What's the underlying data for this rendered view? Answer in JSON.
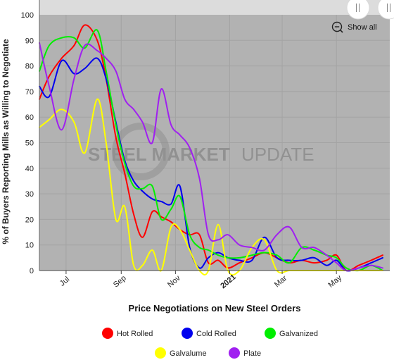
{
  "ui": {
    "show_all_label": "Show all",
    "watermark": {
      "part1": "STEEL MARKET",
      "part2": "UPDATE"
    }
  },
  "chart_data": {
    "type": "line",
    "title": "",
    "xlabel": "Price Negotiations on New Steel Orders",
    "ylabel": "% of Buyers Reporting Mills as Willing to Negotiate",
    "x_range": [
      "2020-06-01",
      "2021-06-30"
    ],
    "ylim": [
      0,
      100
    ],
    "yticks": [
      0,
      10,
      20,
      30,
      40,
      50,
      60,
      70,
      80,
      90,
      100
    ],
    "xticks": [
      {
        "date": "2020-07-01",
        "label": "Jul",
        "bold": false
      },
      {
        "date": "2020-09-01",
        "label": "Sep",
        "bold": false
      },
      {
        "date": "2020-11-01",
        "label": "Nov",
        "bold": false
      },
      {
        "date": "2021-01-01",
        "label": "2021",
        "bold": true
      },
      {
        "date": "2021-03-01",
        "label": "Mar",
        "bold": false
      },
      {
        "date": "2021-05-01",
        "label": "May",
        "bold": false
      }
    ],
    "background": "#b2b2b2",
    "grid": true,
    "legend_position": "bottom",
    "series": [
      {
        "name": "Hot Rolled",
        "color": "#ff0000",
        "points": [
          [
            "2020-06-01",
            67
          ],
          [
            "2020-06-12",
            76
          ],
          [
            "2020-06-26",
            83
          ],
          [
            "2020-07-10",
            88
          ],
          [
            "2020-07-22",
            96
          ],
          [
            "2020-08-05",
            90
          ],
          [
            "2020-08-15",
            75
          ],
          [
            "2020-08-26",
            52
          ],
          [
            "2020-09-05",
            38
          ],
          [
            "2020-09-15",
            22
          ],
          [
            "2020-09-25",
            13
          ],
          [
            "2020-10-06",
            23
          ],
          [
            "2020-10-16",
            21
          ],
          [
            "2020-10-27",
            19
          ],
          [
            "2020-11-06",
            16
          ],
          [
            "2020-11-17",
            14
          ],
          [
            "2020-11-28",
            14
          ],
          [
            "2020-12-08",
            3
          ],
          [
            "2020-12-19",
            4
          ],
          [
            "2020-12-30",
            1
          ],
          [
            "2021-01-12",
            3
          ],
          [
            "2021-01-26",
            5
          ],
          [
            "2021-02-09",
            7
          ],
          [
            "2021-02-23",
            5
          ],
          [
            "2021-03-09",
            3
          ],
          [
            "2021-03-23",
            4
          ],
          [
            "2021-04-06",
            3
          ],
          [
            "2021-04-20",
            4
          ],
          [
            "2021-05-01",
            6
          ],
          [
            "2021-05-12",
            0
          ],
          [
            "2021-05-26",
            2
          ],
          [
            "2021-06-09",
            4
          ],
          [
            "2021-06-22",
            6
          ]
        ]
      },
      {
        "name": "Cold Rolled",
        "color": "#0000ee",
        "points": [
          [
            "2020-06-01",
            72
          ],
          [
            "2020-06-12",
            68
          ],
          [
            "2020-06-26",
            82
          ],
          [
            "2020-07-10",
            77
          ],
          [
            "2020-07-22",
            79
          ],
          [
            "2020-08-05",
            83
          ],
          [
            "2020-08-15",
            75
          ],
          [
            "2020-08-26",
            58
          ],
          [
            "2020-09-05",
            43
          ],
          [
            "2020-09-15",
            35
          ],
          [
            "2020-09-25",
            31
          ],
          [
            "2020-10-06",
            28
          ],
          [
            "2020-10-16",
            27
          ],
          [
            "2020-10-27",
            26
          ],
          [
            "2020-11-06",
            33
          ],
          [
            "2020-11-17",
            9
          ],
          [
            "2020-11-28",
            1
          ],
          [
            "2020-12-08",
            5
          ],
          [
            "2020-12-19",
            7
          ],
          [
            "2020-12-30",
            5
          ],
          [
            "2021-01-12",
            4
          ],
          [
            "2021-01-26",
            4
          ],
          [
            "2021-02-09",
            13
          ],
          [
            "2021-02-23",
            5
          ],
          [
            "2021-03-09",
            4
          ],
          [
            "2021-03-23",
            4
          ],
          [
            "2021-04-06",
            5
          ],
          [
            "2021-04-20",
            2
          ],
          [
            "2021-05-01",
            4
          ],
          [
            "2021-05-12",
            0
          ],
          [
            "2021-05-26",
            1
          ],
          [
            "2021-06-09",
            3
          ],
          [
            "2021-06-22",
            5
          ]
        ]
      },
      {
        "name": "Galvanized",
        "color": "#00ee00",
        "points": [
          [
            "2020-06-01",
            78
          ],
          [
            "2020-06-12",
            88
          ],
          [
            "2020-06-26",
            91
          ],
          [
            "2020-07-10",
            91
          ],
          [
            "2020-07-22",
            87
          ],
          [
            "2020-08-05",
            94
          ],
          [
            "2020-08-15",
            78
          ],
          [
            "2020-08-26",
            57
          ],
          [
            "2020-09-05",
            42
          ],
          [
            "2020-09-15",
            33
          ],
          [
            "2020-09-25",
            32
          ],
          [
            "2020-10-06",
            33
          ],
          [
            "2020-10-16",
            20
          ],
          [
            "2020-10-27",
            24
          ],
          [
            "2020-11-06",
            29
          ],
          [
            "2020-11-17",
            14
          ],
          [
            "2020-11-28",
            9
          ],
          [
            "2020-12-08",
            8
          ],
          [
            "2020-12-19",
            6
          ],
          [
            "2020-12-30",
            5
          ],
          [
            "2021-01-12",
            5
          ],
          [
            "2021-01-26",
            6
          ],
          [
            "2021-02-09",
            7
          ],
          [
            "2021-02-23",
            6
          ],
          [
            "2021-03-09",
            3
          ],
          [
            "2021-03-23",
            9
          ],
          [
            "2021-04-06",
            8
          ],
          [
            "2021-04-20",
            6
          ],
          [
            "2021-05-01",
            5
          ],
          [
            "2021-05-12",
            1
          ],
          [
            "2021-05-26",
            0
          ],
          [
            "2021-06-09",
            2
          ],
          [
            "2021-06-22",
            0
          ]
        ]
      },
      {
        "name": "Galvalume",
        "color": "#ffff00",
        "points": [
          [
            "2020-06-01",
            56
          ],
          [
            "2020-06-12",
            59
          ],
          [
            "2020-06-26",
            63
          ],
          [
            "2020-07-10",
            58
          ],
          [
            "2020-07-22",
            46
          ],
          [
            "2020-08-05",
            67
          ],
          [
            "2020-08-15",
            50
          ],
          [
            "2020-08-26",
            20
          ],
          [
            "2020-09-05",
            25
          ],
          [
            "2020-09-15",
            2
          ],
          [
            "2020-09-25",
            2
          ],
          [
            "2020-10-06",
            8
          ],
          [
            "2020-10-16",
            0
          ],
          [
            "2020-10-27",
            17
          ],
          [
            "2020-11-06",
            16
          ],
          [
            "2020-11-17",
            8
          ],
          [
            "2020-11-28",
            0
          ],
          [
            "2020-12-08",
            0
          ],
          [
            "2020-12-19",
            18
          ],
          [
            "2020-12-30",
            0
          ],
          [
            "2021-01-12",
            0
          ],
          [
            "2021-01-26",
            9
          ],
          [
            "2021-02-09",
            12
          ],
          [
            "2021-02-23",
            0
          ],
          [
            "2021-03-09",
            0
          ],
          [
            "2021-03-23",
            0
          ],
          [
            "2021-04-06",
            0
          ],
          [
            "2021-04-20",
            0
          ],
          [
            "2021-05-01",
            0
          ],
          [
            "2021-05-12",
            0
          ],
          [
            "2021-05-26",
            0
          ],
          [
            "2021-06-09",
            0
          ],
          [
            "2021-06-22",
            0
          ]
        ]
      },
      {
        "name": "Plate",
        "color": "#a020f0",
        "points": [
          [
            "2020-06-01",
            89
          ],
          [
            "2020-06-12",
            72
          ],
          [
            "2020-06-26",
            55
          ],
          [
            "2020-07-10",
            75
          ],
          [
            "2020-07-22",
            88
          ],
          [
            "2020-08-05",
            86
          ],
          [
            "2020-08-15",
            83
          ],
          [
            "2020-08-26",
            78
          ],
          [
            "2020-09-05",
            67
          ],
          [
            "2020-09-15",
            63
          ],
          [
            "2020-09-25",
            58
          ],
          [
            "2020-10-06",
            50
          ],
          [
            "2020-10-16",
            71
          ],
          [
            "2020-10-27",
            57
          ],
          [
            "2020-11-06",
            53
          ],
          [
            "2020-11-17",
            48
          ],
          [
            "2020-11-28",
            36
          ],
          [
            "2020-12-08",
            14
          ],
          [
            "2020-12-19",
            12
          ],
          [
            "2020-12-30",
            14
          ],
          [
            "2021-01-12",
            10
          ],
          [
            "2021-01-26",
            9
          ],
          [
            "2021-02-09",
            8
          ],
          [
            "2021-02-23",
            14
          ],
          [
            "2021-03-09",
            17
          ],
          [
            "2021-03-23",
            9
          ],
          [
            "2021-04-06",
            9
          ],
          [
            "2021-04-20",
            6
          ],
          [
            "2021-05-01",
            3
          ],
          [
            "2021-05-12",
            0
          ],
          [
            "2021-05-26",
            1
          ],
          [
            "2021-06-09",
            2
          ],
          [
            "2021-06-22",
            1
          ]
        ]
      }
    ]
  }
}
